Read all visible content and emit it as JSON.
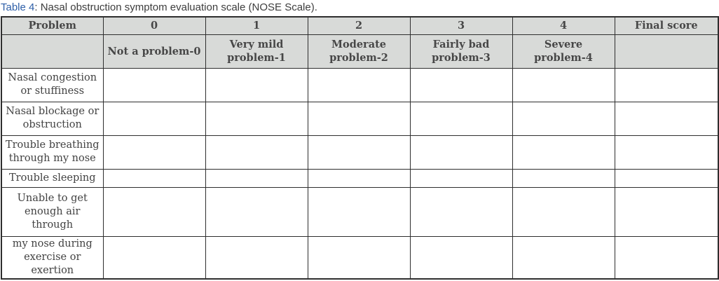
{
  "caption": {
    "label": "Table 4",
    "text": ": Nasal obstruction symptom evaluation scale (NOSE Scale)."
  },
  "colors": {
    "title_blue": "#2e5fa8",
    "header_bg": "#d8dad8",
    "border": "#2e2e2e",
    "text": "#424242"
  },
  "table": {
    "columns": [
      "Problem",
      "0",
      "1",
      "2",
      "3",
      "4",
      "Final score"
    ],
    "subheaders": [
      "",
      "Not a problem-0",
      "Very mild\nproblem-1",
      "Moderate\nproblem-2",
      "Fairly bad\nproblem-3",
      "Severe\nproblem-4",
      ""
    ],
    "rows": [
      "Nasal congestion\nor stuffiness",
      "Nasal blockage or\nobstruction",
      "Trouble breathing\nthrough my nose",
      "Trouble sleeping",
      "Unable to get\nenough air\nthrough",
      "my nose during\nexercise or\nexertion"
    ]
  }
}
